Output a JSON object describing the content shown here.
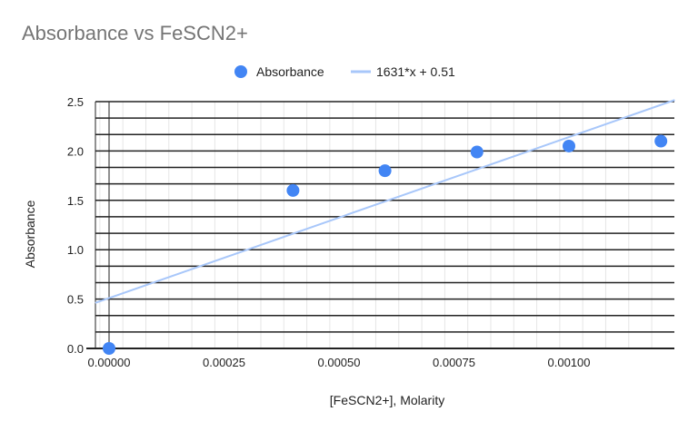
{
  "chart_data": {
    "type": "scatter",
    "title": "Absorbance vs FeSCN2+",
    "xlabel": "[FeSCN2+], Molarity",
    "ylabel": "Absorbance",
    "xlim": [
      -3e-05,
      0.00123
    ],
    "ylim": [
      0,
      2.5
    ],
    "x_ticks": [
      "0.00000",
      "0.00025",
      "0.00050",
      "0.00075",
      "0.00100"
    ],
    "x_tick_values": [
      0,
      0.00025,
      0.0005,
      0.00075,
      0.001
    ],
    "y_ticks": [
      "0.0",
      "0.5",
      "1.0",
      "1.5",
      "2.0",
      "2.5"
    ],
    "y_tick_values": [
      0,
      0.5,
      1.0,
      1.5,
      2.0,
      2.5
    ],
    "grid": true,
    "legend_position": "top",
    "series": [
      {
        "name": "Absorbance",
        "color": "#4285f4",
        "x": [
          0,
          0.0004,
          0.0006,
          0.0008,
          0.001,
          0.0012
        ],
        "y": [
          0,
          1.6,
          1.8,
          1.99,
          2.05,
          2.1
        ]
      }
    ],
    "trendline": {
      "name": "1631*x + 0.51",
      "slope": 1631,
      "intercept": 0.51,
      "color": "#a8c7fa"
    }
  }
}
